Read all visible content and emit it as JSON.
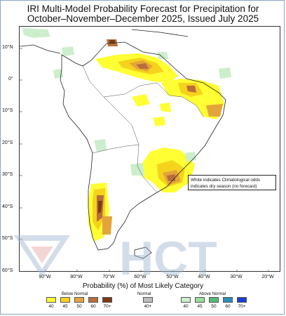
{
  "title": {
    "line1": "IRI Multi-Model Probability Forecast for Precipitation for",
    "line2": "October–November–December 2025, Issued July 2025"
  },
  "axes": {
    "latitude_labels": [
      "10°N",
      "0°",
      "10°S",
      "20°S",
      "30°S",
      "40°S",
      "50°S",
      "60°S"
    ],
    "longitude_labels": [
      "90°W",
      "80°W",
      "70°W",
      "60°W",
      "50°W",
      "40°W",
      "30°W",
      "20°W"
    ]
  },
  "note": {
    "line1": "White indicates Climatological odds",
    "line2": "indicates dry season (no forecast)"
  },
  "legend": {
    "title": "Probability (%) of Most Likely Category",
    "below_label": "Below Normal",
    "normal_label": "Normal",
    "above_label": "Above Normal",
    "below": [
      {
        "label": "40",
        "color": "#ffff33"
      },
      {
        "label": "45",
        "color": "#f5d21c"
      },
      {
        "label": "50",
        "color": "#e3a53a"
      },
      {
        "label": "60",
        "color": "#b86e3a"
      },
      {
        "label": "70+",
        "color": "#7a3a1a"
      }
    ],
    "normal": [
      {
        "label": "40+",
        "color": "#bdbdbd"
      }
    ],
    "above": [
      {
        "label": "40",
        "color": "#cceecc"
      },
      {
        "label": "45",
        "color": "#99dd99"
      },
      {
        "label": "50",
        "color": "#55bb77"
      },
      {
        "label": "60",
        "color": "#2a8fbd"
      },
      {
        "label": "70+",
        "color": "#1a3fd0"
      }
    ]
  },
  "colors": {
    "coast": "#222222",
    "dry_season": "#ffffff",
    "watermark": "#9fb4d2"
  },
  "watermark": {
    "logo_text": "HCT"
  }
}
